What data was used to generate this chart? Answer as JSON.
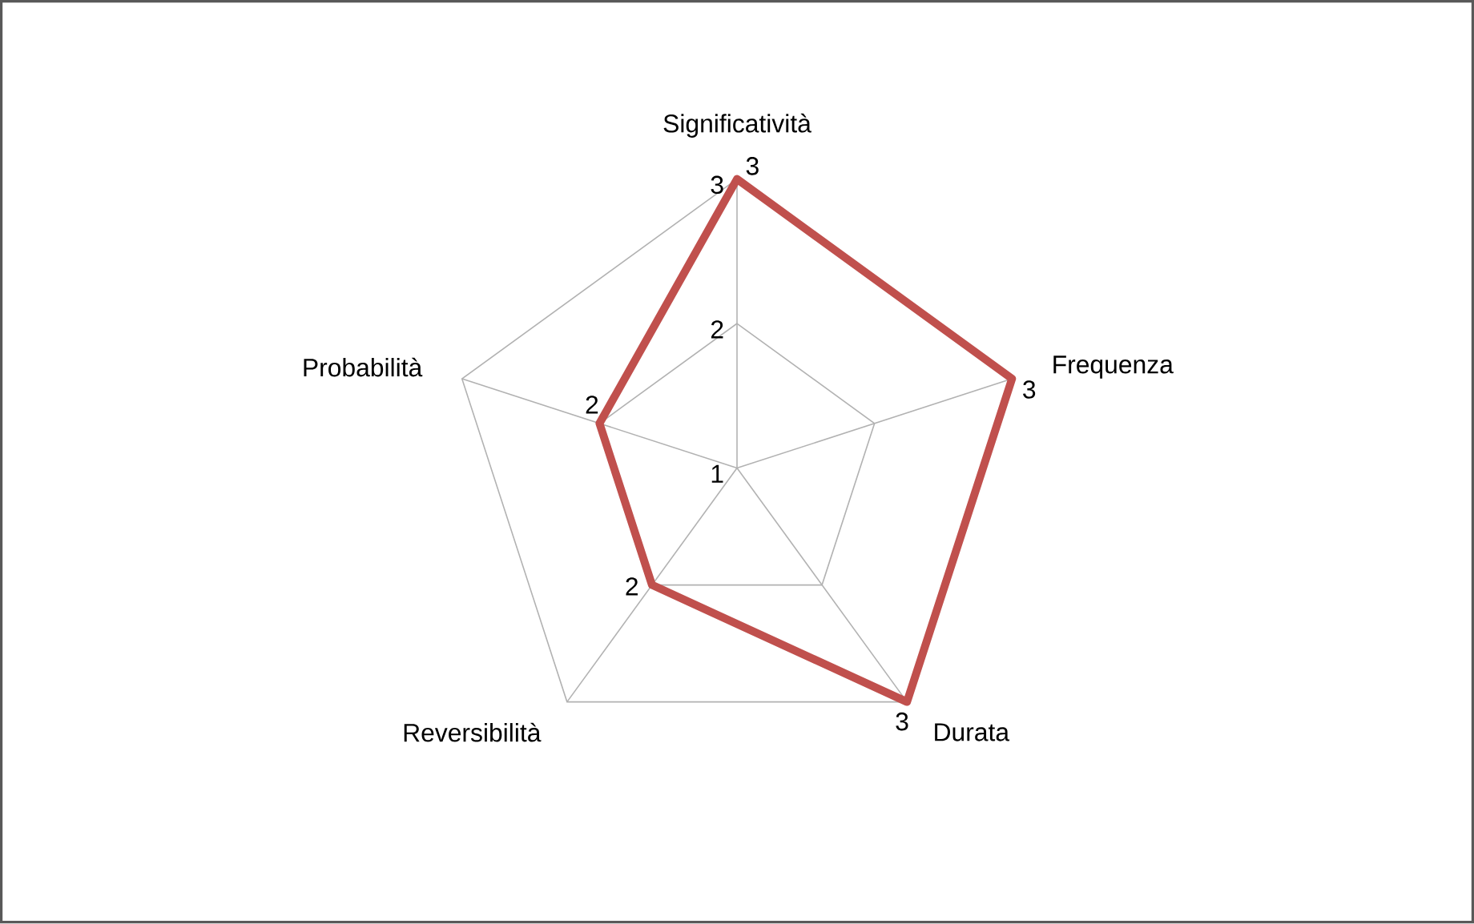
{
  "chart_data": {
    "type": "radar",
    "categories": [
      "Significatività",
      "Frequenza",
      "Durata",
      "Reversibilità",
      "Probabilità"
    ],
    "series": [
      {
        "color": "#c0504d",
        "values": [
          3,
          3,
          3,
          2,
          2
        ]
      }
    ],
    "ylim": [
      1,
      3
    ],
    "yticks": [
      1,
      2,
      3
    ],
    "grid": true,
    "data_labels": true
  }
}
